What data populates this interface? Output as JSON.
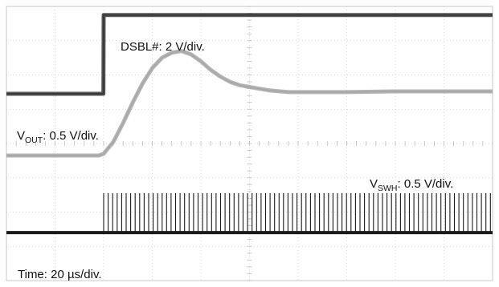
{
  "chart_data": {
    "type": "line",
    "title": "",
    "xlabel": "",
    "ylabel": "",
    "grid": true,
    "grid_divisions": {
      "x": 10,
      "y": 8
    },
    "x_unit": "µs",
    "xlim": [
      0,
      200
    ],
    "ylim_div": [
      0,
      8
    ],
    "annotations": {
      "dsbl_prefix": "DSBL#: 2 V/div.",
      "vout_main": "V",
      "vout_sub": "OUT",
      "vout_rest": ": 0.5 V/div.",
      "vswh_main": "V",
      "vswh_sub": "SWH",
      "vswh_rest": ": 0.5 V/div.",
      "time": "Time: 20 µs/div."
    },
    "series": [
      {
        "name": "DSBL#",
        "color": "#3a3a3a",
        "x": [
          0,
          39.9,
          40,
          200
        ],
        "y": [
          5.45,
          5.45,
          7.75,
          7.75
        ]
      },
      {
        "name": "VOUT",
        "color": "#a8a8a8",
        "x": [
          0,
          38,
          40,
          44,
          48,
          52,
          56,
          60,
          64,
          68,
          72,
          76,
          80,
          84,
          88,
          92,
          96,
          100,
          108,
          116,
          124,
          140,
          160,
          180,
          200
        ],
        "y": [
          3.65,
          3.65,
          3.7,
          4.05,
          4.6,
          5.2,
          5.75,
          6.2,
          6.5,
          6.65,
          6.7,
          6.6,
          6.4,
          6.15,
          5.95,
          5.8,
          5.7,
          5.65,
          5.55,
          5.5,
          5.5,
          5.5,
          5.52,
          5.52,
          5.52
        ]
      },
      {
        "name": "VSWH",
        "color": "#1a1a1a",
        "baseline": 1.4,
        "pulse_top": 2.55,
        "start": 40,
        "period": 1.85,
        "end": 200
      }
    ]
  }
}
